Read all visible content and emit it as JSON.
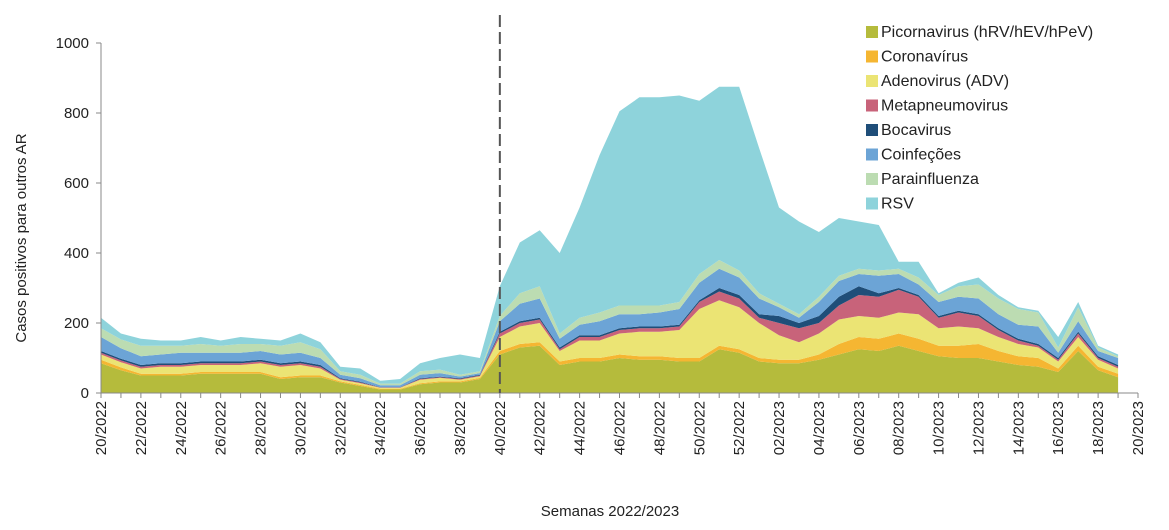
{
  "chart_data": {
    "type": "stacked-area",
    "y_label": "Casos positivos para outros AR",
    "x_label": "Semanas 2022/2023",
    "ylim": [
      0,
      1000
    ],
    "yticks": [
      0,
      200,
      400,
      600,
      800,
      1000
    ],
    "legend": "top-right",
    "categories": [
      "20/2022",
      null,
      "22/2022",
      null,
      "24/2022",
      null,
      "26/2022",
      null,
      "28/2022",
      null,
      "30/2022",
      null,
      "32/2022",
      null,
      "34/2022",
      null,
      "36/2022",
      null,
      "38/2022",
      null,
      "40/2022",
      null,
      "42/2022",
      null,
      "44/2022",
      null,
      "46/2022",
      null,
      "48/2022",
      null,
      "50/2022",
      null,
      "52/2022",
      null,
      "02/2023",
      null,
      "04/2023",
      null,
      "06/2023",
      null,
      "08/2023",
      null,
      "10/2023",
      null,
      "12/2023",
      null,
      "14/2023",
      null,
      "16/2023",
      null,
      "18/2023",
      null,
      "20/2023"
    ],
    "series": [
      {
        "name": "Picornavirus (hRV/hEV/hPeV)",
        "color": "#b5bb3c",
        "values": [
          85,
          65,
          50,
          50,
          50,
          55,
          55,
          55,
          55,
          40,
          45,
          45,
          30,
          20,
          10,
          10,
          25,
          30,
          30,
          40,
          110,
          130,
          135,
          80,
          90,
          90,
          100,
          95,
          95,
          90,
          90,
          125,
          115,
          90,
          85,
          85,
          95,
          110,
          125,
          120,
          135,
          120,
          105,
          100,
          100,
          90,
          80,
          75,
          60,
          120,
          65,
          45,
          null
        ]
      },
      {
        "name": "Coronavírus",
        "color": "#f5b632",
        "values": [
          10,
          8,
          5,
          5,
          5,
          5,
          5,
          5,
          5,
          5,
          5,
          5,
          3,
          3,
          2,
          2,
          3,
          3,
          3,
          3,
          10,
          10,
          10,
          10,
          10,
          10,
          10,
          10,
          10,
          10,
          10,
          10,
          10,
          10,
          10,
          10,
          15,
          30,
          35,
          35,
          35,
          35,
          30,
          35,
          40,
          30,
          25,
          25,
          10,
          15,
          10,
          10,
          null
        ]
      },
      {
        "name": "Adenovirus (ADV)",
        "color": "#ebe474",
        "values": [
          15,
          15,
          15,
          20,
          20,
          20,
          20,
          20,
          25,
          30,
          30,
          20,
          5,
          5,
          3,
          3,
          10,
          10,
          5,
          5,
          40,
          50,
          55,
          30,
          50,
          50,
          60,
          70,
          70,
          80,
          140,
          130,
          120,
          100,
          70,
          50,
          60,
          70,
          60,
          60,
          60,
          70,
          50,
          55,
          45,
          40,
          35,
          30,
          20,
          25,
          20,
          15,
          null
        ]
      },
      {
        "name": "Metapneumovirus",
        "color": "#c8637a",
        "values": [
          5,
          5,
          5,
          5,
          5,
          5,
          5,
          5,
          5,
          5,
          5,
          5,
          2,
          2,
          1,
          1,
          2,
          2,
          2,
          2,
          10,
          10,
          10,
          5,
          10,
          10,
          10,
          10,
          10,
          10,
          20,
          25,
          25,
          15,
          35,
          40,
          30,
          40,
          60,
          60,
          65,
          50,
          30,
          40,
          35,
          20,
          10,
          5,
          5,
          10,
          5,
          5,
          null
        ]
      },
      {
        "name": "Bocavirus",
        "color": "#1f4e79",
        "values": [
          5,
          5,
          5,
          5,
          5,
          5,
          5,
          5,
          5,
          5,
          5,
          5,
          2,
          2,
          1,
          1,
          2,
          2,
          2,
          2,
          5,
          5,
          5,
          5,
          5,
          5,
          5,
          5,
          5,
          5,
          5,
          10,
          10,
          10,
          20,
          15,
          20,
          25,
          25,
          10,
          5,
          5,
          5,
          5,
          5,
          5,
          5,
          5,
          5,
          5,
          5,
          5,
          null
        ]
      },
      {
        "name": "Coinfeções",
        "color": "#6ca4d6",
        "values": [
          40,
          30,
          25,
          25,
          30,
          25,
          25,
          25,
          25,
          25,
          25,
          20,
          10,
          10,
          5,
          5,
          10,
          10,
          5,
          5,
          30,
          50,
          55,
          25,
          30,
          40,
          40,
          35,
          40,
          45,
          50,
          55,
          50,
          45,
          25,
          15,
          40,
          45,
          35,
          50,
          40,
          30,
          40,
          40,
          45,
          40,
          40,
          50,
          15,
          30,
          15,
          20,
          null
        ]
      },
      {
        "name": "Parainfluenza",
        "color": "#bcdcb2",
        "values": [
          25,
          25,
          30,
          25,
          20,
          25,
          20,
          25,
          20,
          25,
          30,
          25,
          10,
          10,
          5,
          5,
          10,
          10,
          5,
          5,
          15,
          30,
          35,
          15,
          20,
          25,
          25,
          25,
          20,
          20,
          25,
          25,
          20,
          15,
          10,
          10,
          15,
          15,
          15,
          15,
          15,
          20,
          20,
          30,
          40,
          45,
          45,
          40,
          15,
          40,
          10,
          5,
          null
        ]
      },
      {
        "name": "RSV",
        "color": "#8ed3db",
        "values": [
          30,
          17,
          20,
          15,
          15,
          20,
          15,
          20,
          15,
          15,
          25,
          20,
          13,
          18,
          8,
          13,
          23,
          33,
          58,
          38,
          85,
          145,
          160,
          230,
          315,
          450,
          555,
          595,
          595,
          590,
          495,
          495,
          525,
          415,
          275,
          265,
          185,
          165,
          135,
          130,
          20,
          45,
          5,
          10,
          20,
          10,
          5,
          5,
          30,
          15,
          5,
          5,
          null
        ]
      }
    ]
  }
}
